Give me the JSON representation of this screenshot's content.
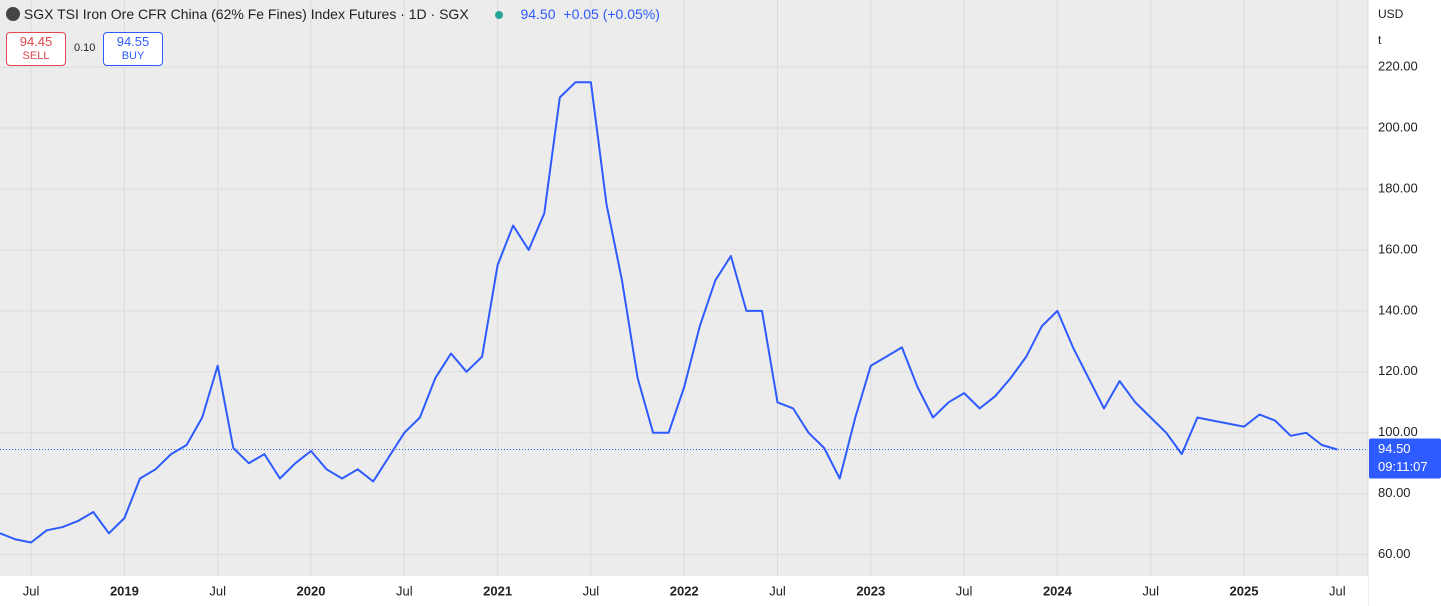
{
  "header": {
    "title": "SGX TSI Iron Ore CFR China (62% Fe Fines) Index Futures · 1D · SGX",
    "price": "94.50",
    "change": "+0.05 (+0.05%)",
    "sell_price": "94.45",
    "sell": "SELL",
    "spread": "0.10",
    "buy_price": "94.55",
    "buy": "BUY",
    "currency": "USD",
    "unit": "t",
    "countdown": "09:11:07"
  },
  "chart_data": {
    "type": "line",
    "color": "#2e5bff",
    "x": [
      "2018-05",
      "2018-06",
      "2018-07",
      "2018-08",
      "2018-09",
      "2018-10",
      "2018-11",
      "2018-12",
      "2019-01",
      "2019-02",
      "2019-03",
      "2019-04",
      "2019-05",
      "2019-06",
      "2019-07",
      "2019-08",
      "2019-09",
      "2019-10",
      "2019-11",
      "2019-12",
      "2020-01",
      "2020-02",
      "2020-03",
      "2020-04",
      "2020-05",
      "2020-06",
      "2020-07",
      "2020-08",
      "2020-09",
      "2020-10",
      "2020-11",
      "2020-12",
      "2021-01",
      "2021-02",
      "2021-03",
      "2021-04",
      "2021-05",
      "2021-06",
      "2021-07",
      "2021-08",
      "2021-09",
      "2021-10",
      "2021-11",
      "2021-12",
      "2022-01",
      "2022-02",
      "2022-03",
      "2022-04",
      "2022-05",
      "2022-06",
      "2022-07",
      "2022-08",
      "2022-09",
      "2022-10",
      "2022-11",
      "2022-12",
      "2023-01",
      "2023-02",
      "2023-03",
      "2023-04",
      "2023-05",
      "2023-06",
      "2023-07",
      "2023-08",
      "2023-09",
      "2023-10",
      "2023-11",
      "2023-12",
      "2024-01",
      "2024-02",
      "2024-03",
      "2024-04",
      "2024-05",
      "2024-06",
      "2024-07",
      "2024-08",
      "2024-09",
      "2024-10",
      "2024-11",
      "2024-12",
      "2025-01",
      "2025-02",
      "2025-03",
      "2025-04",
      "2025-05",
      "2025-06",
      "2025-07"
    ],
    "values": [
      67,
      65,
      64,
      68,
      69,
      71,
      74,
      67,
      72,
      85,
      88,
      93,
      96,
      105,
      122,
      95,
      90,
      93,
      85,
      90,
      94,
      88,
      85,
      88,
      84,
      92,
      100,
      105,
      118,
      126,
      120,
      125,
      155,
      168,
      160,
      172,
      210,
      215,
      215,
      175,
      150,
      118,
      100,
      100,
      115,
      135,
      150,
      158,
      140,
      140,
      110,
      108,
      100,
      95,
      85,
      105,
      122,
      125,
      128,
      115,
      105,
      110,
      113,
      108,
      112,
      118,
      125,
      135,
      140,
      128,
      118,
      108,
      117,
      110,
      105,
      100,
      93,
      105,
      104,
      103,
      102,
      106,
      104,
      99,
      100,
      96,
      94.5
    ],
    "ylim": [
      53,
      242
    ],
    "yticks": [
      {
        "value": 60,
        "label": "60.00"
      },
      {
        "value": 80,
        "label": "80.00"
      },
      {
        "value": 100,
        "label": "100.00"
      },
      {
        "value": 120,
        "label": "120.00"
      },
      {
        "value": 140,
        "label": "140.00"
      },
      {
        "value": 160,
        "label": "160.00"
      },
      {
        "value": 180,
        "label": "180.00"
      },
      {
        "value": 200,
        "label": "200.00"
      },
      {
        "value": 220,
        "label": "220.00"
      }
    ],
    "xticks": [
      {
        "value": "2018-07",
        "label": "Jul"
      },
      {
        "value": "2019-01",
        "label": "2019"
      },
      {
        "value": "2019-07",
        "label": "Jul"
      },
      {
        "value": "2020-01",
        "label": "2020"
      },
      {
        "value": "2020-07",
        "label": "Jul"
      },
      {
        "value": "2021-01",
        "label": "2021"
      },
      {
        "value": "2021-07",
        "label": "Jul"
      },
      {
        "value": "2022-01",
        "label": "2022"
      },
      {
        "value": "2022-07",
        "label": "Jul"
      },
      {
        "value": "2023-01",
        "label": "2023"
      },
      {
        "value": "2023-07",
        "label": "Jul"
      },
      {
        "value": "2024-01",
        "label": "2024"
      },
      {
        "value": "2024-07",
        "label": "Jul"
      },
      {
        "value": "2025-01",
        "label": "2025"
      },
      {
        "value": "2025-07",
        "label": "Jul"
      }
    ],
    "last_price": {
      "value": 94.5,
      "label": "94.50"
    },
    "grid": true
  }
}
